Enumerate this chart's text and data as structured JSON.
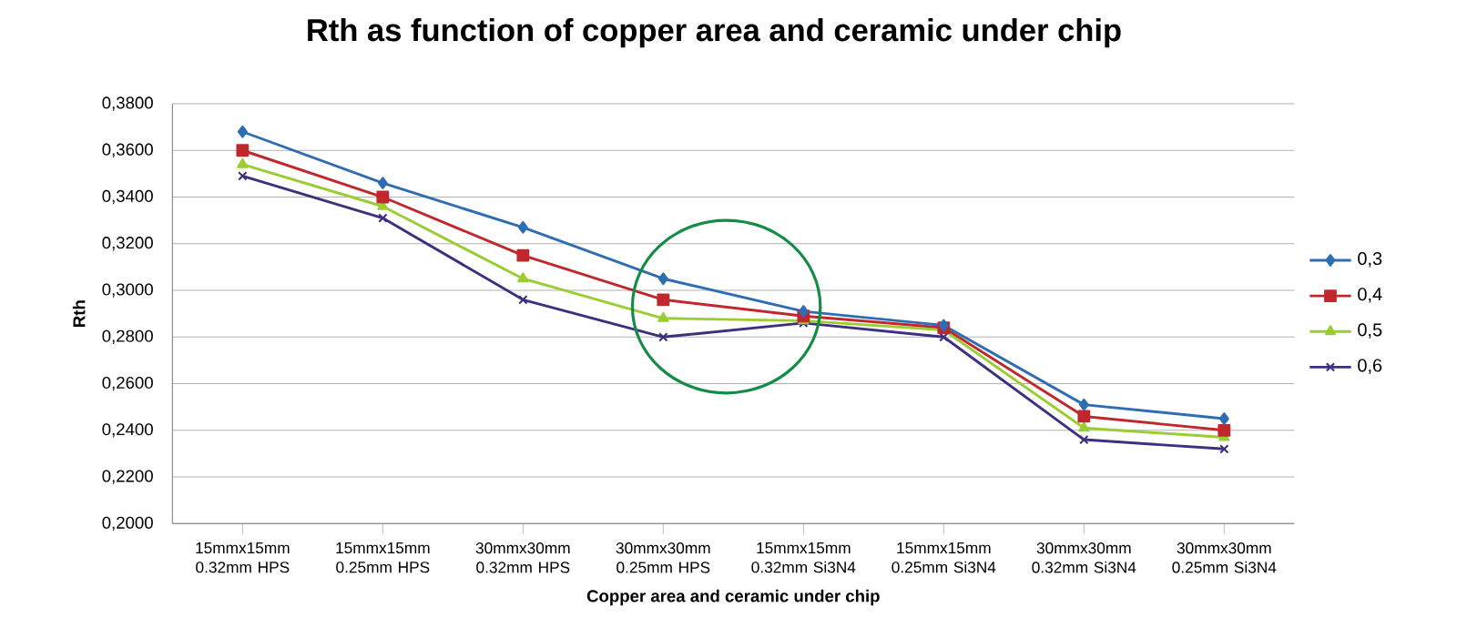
{
  "chart_data": {
    "type": "line",
    "title": "Rth as function of copper area and ceramic under chip",
    "xlabel": "Copper area and ceramic under chip",
    "ylabel": "Rth",
    "categories": [
      "15mmx15mm 0.32mm HPS",
      "15mmx15mm 0.25mm HPS",
      "30mmx30mm 0.32mm HPS",
      "30mmx30mm 0.25mm HPS",
      "15mmx15mm 0.32mm Si3N4",
      "15mmx15mm 0.25mm Si3N4",
      "30mmx30mm 0.32mm Si3N4",
      "30mmx30mm 0.25mm Si3N4"
    ],
    "series": [
      {
        "name": "0,3",
        "color": "#2e6db4",
        "marker": "diamond",
        "values": [
          0.368,
          0.346,
          0.327,
          0.305,
          0.291,
          0.285,
          0.251,
          0.245
        ]
      },
      {
        "name": "0,4",
        "color": "#c0282d",
        "marker": "square",
        "values": [
          0.36,
          0.34,
          0.315,
          0.296,
          0.289,
          0.284,
          0.246,
          0.24
        ]
      },
      {
        "name": "0,5",
        "color": "#9acd32",
        "marker": "triangle",
        "values": [
          0.354,
          0.336,
          0.305,
          0.288,
          0.287,
          0.283,
          0.241,
          0.237
        ]
      },
      {
        "name": "0,6",
        "color": "#3f2f7f",
        "marker": "cross",
        "values": [
          0.349,
          0.331,
          0.296,
          0.28,
          0.286,
          0.28,
          0.236,
          0.232
        ]
      }
    ],
    "ylim": [
      0.2,
      0.38
    ],
    "yticks": [
      {
        "value": 0.2,
        "label": "0,2000"
      },
      {
        "value": 0.22,
        "label": "0,2200"
      },
      {
        "value": 0.24,
        "label": "0,2400"
      },
      {
        "value": 0.26,
        "label": "0,2600"
      },
      {
        "value": 0.28,
        "label": "0,2800"
      },
      {
        "value": 0.3,
        "label": "0,3000"
      },
      {
        "value": 0.32,
        "label": "0,3200"
      },
      {
        "value": 0.34,
        "label": "0,3400"
      },
      {
        "value": 0.36,
        "label": "0,3600"
      },
      {
        "value": 0.38,
        "label": "0,3800"
      }
    ],
    "grid": "y",
    "legend": "right",
    "line_style": "solid"
  }
}
